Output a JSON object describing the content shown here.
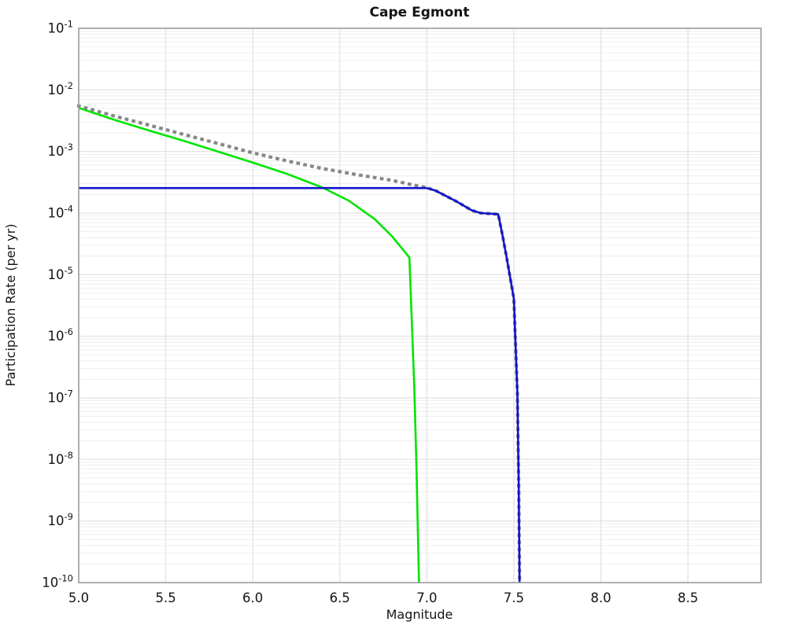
{
  "figure": {
    "title": "Cape Egmont",
    "xlabel": "Magnitude",
    "ylabel": "Participation Rate (per yr)"
  },
  "chart_data": {
    "type": "line",
    "title": "Cape Egmont",
    "xlabel": "Magnitude",
    "ylabel": "Participation Rate (per yr)",
    "x_range": [
      5.0,
      8.92
    ],
    "x_ticks": [
      5.0,
      5.5,
      6.0,
      6.5,
      7.0,
      7.5,
      8.0,
      8.5
    ],
    "y_scale": "log",
    "y_range_exponents": [
      -1,
      -10
    ],
    "y_tick_exponents": [
      -1,
      -2,
      -3,
      -4,
      -5,
      -6,
      -7,
      -8,
      -9,
      -10
    ],
    "grid": true,
    "legend": "none",
    "background_color": "#ffffff",
    "grid_minor_color": "#ededed",
    "grid_major_color": "#e0e0e0",
    "spine_color": "#9c9c9c",
    "series": [
      {
        "name": "gray-dotted-curve",
        "color": "#878787",
        "style": "dotted",
        "width": 4.2,
        "points": [
          [
            5.0,
            0.0055
          ],
          [
            5.2,
            0.0038
          ],
          [
            5.4,
            0.0027
          ],
          [
            5.6,
            0.0019
          ],
          [
            5.8,
            0.00135
          ],
          [
            6.0,
            0.00095
          ],
          [
            6.2,
            0.0007
          ],
          [
            6.4,
            0.00053
          ],
          [
            6.6,
            0.00042
          ],
          [
            6.8,
            0.00034
          ],
          [
            6.95,
            0.000275
          ],
          [
            7.0,
            0.00026
          ],
          [
            7.05,
            0.000232
          ],
          [
            7.08,
            0.00021
          ],
          [
            7.17,
            0.000155
          ],
          [
            7.26,
            0.00011
          ],
          [
            7.31,
            0.0001
          ],
          [
            7.41,
            9.6e-05
          ],
          [
            7.435,
            4.3e-05
          ],
          [
            7.46,
            1.8e-05
          ],
          [
            7.5,
            4.1e-06
          ],
          [
            7.52,
            1.2e-07
          ],
          [
            7.528,
            4e-09
          ],
          [
            7.533,
            1e-10
          ]
        ]
      },
      {
        "name": "green-curve",
        "color": "#00e400",
        "style": "solid",
        "width": 2.6,
        "points": [
          [
            5.0,
            0.0051
          ],
          [
            5.2,
            0.0033
          ],
          [
            5.4,
            0.0022
          ],
          [
            5.6,
            0.0015
          ],
          [
            5.8,
            0.001
          ],
          [
            6.0,
            0.00066
          ],
          [
            6.2,
            0.00043
          ],
          [
            6.4,
            0.00026
          ],
          [
            6.55,
            0.00016
          ],
          [
            6.7,
            8e-05
          ],
          [
            6.8,
            4.2e-05
          ],
          [
            6.9,
            1.9e-05
          ],
          [
            6.928,
            1.5e-07
          ],
          [
            6.941,
            6.5e-09
          ],
          [
            6.955,
            1e-10
          ]
        ]
      },
      {
        "name": "blue-curve",
        "color": "#1212cf",
        "style": "solid",
        "width": 2.6,
        "points": [
          [
            5.0,
            0.000255
          ],
          [
            6.9,
            0.000255
          ],
          [
            7.0,
            0.000255
          ],
          [
            7.05,
            0.000232
          ],
          [
            7.08,
            0.00021
          ],
          [
            7.17,
            0.000155
          ],
          [
            7.26,
            0.00011
          ],
          [
            7.31,
            0.0001
          ],
          [
            7.41,
            9.6e-05
          ],
          [
            7.435,
            4.3e-05
          ],
          [
            7.46,
            1.8e-05
          ],
          [
            7.5,
            4.1e-06
          ],
          [
            7.52,
            1.2e-07
          ],
          [
            7.528,
            4e-09
          ],
          [
            7.533,
            1e-10
          ]
        ]
      }
    ]
  }
}
